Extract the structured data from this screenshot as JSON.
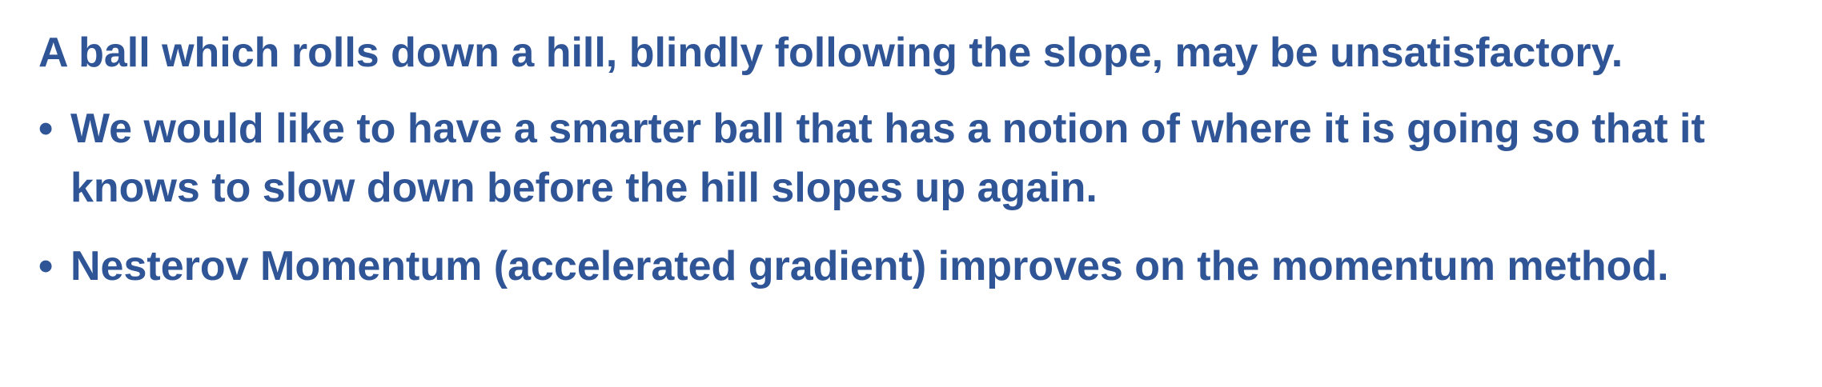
{
  "content": {
    "intro": "A ball which rolls down a hill, blindly following the slope, may be unsatisfactory.",
    "bullet_symbol": "•",
    "bullets": [
      "We would like to have a smarter ball that has a notion of where it is going so that it knows to slow down before the hill slopes up again.",
      "Nesterov Momentum (accelerated gradient) improves on the momentum method."
    ]
  },
  "colors": {
    "text": "#2f5597",
    "background": "#ffffff"
  }
}
